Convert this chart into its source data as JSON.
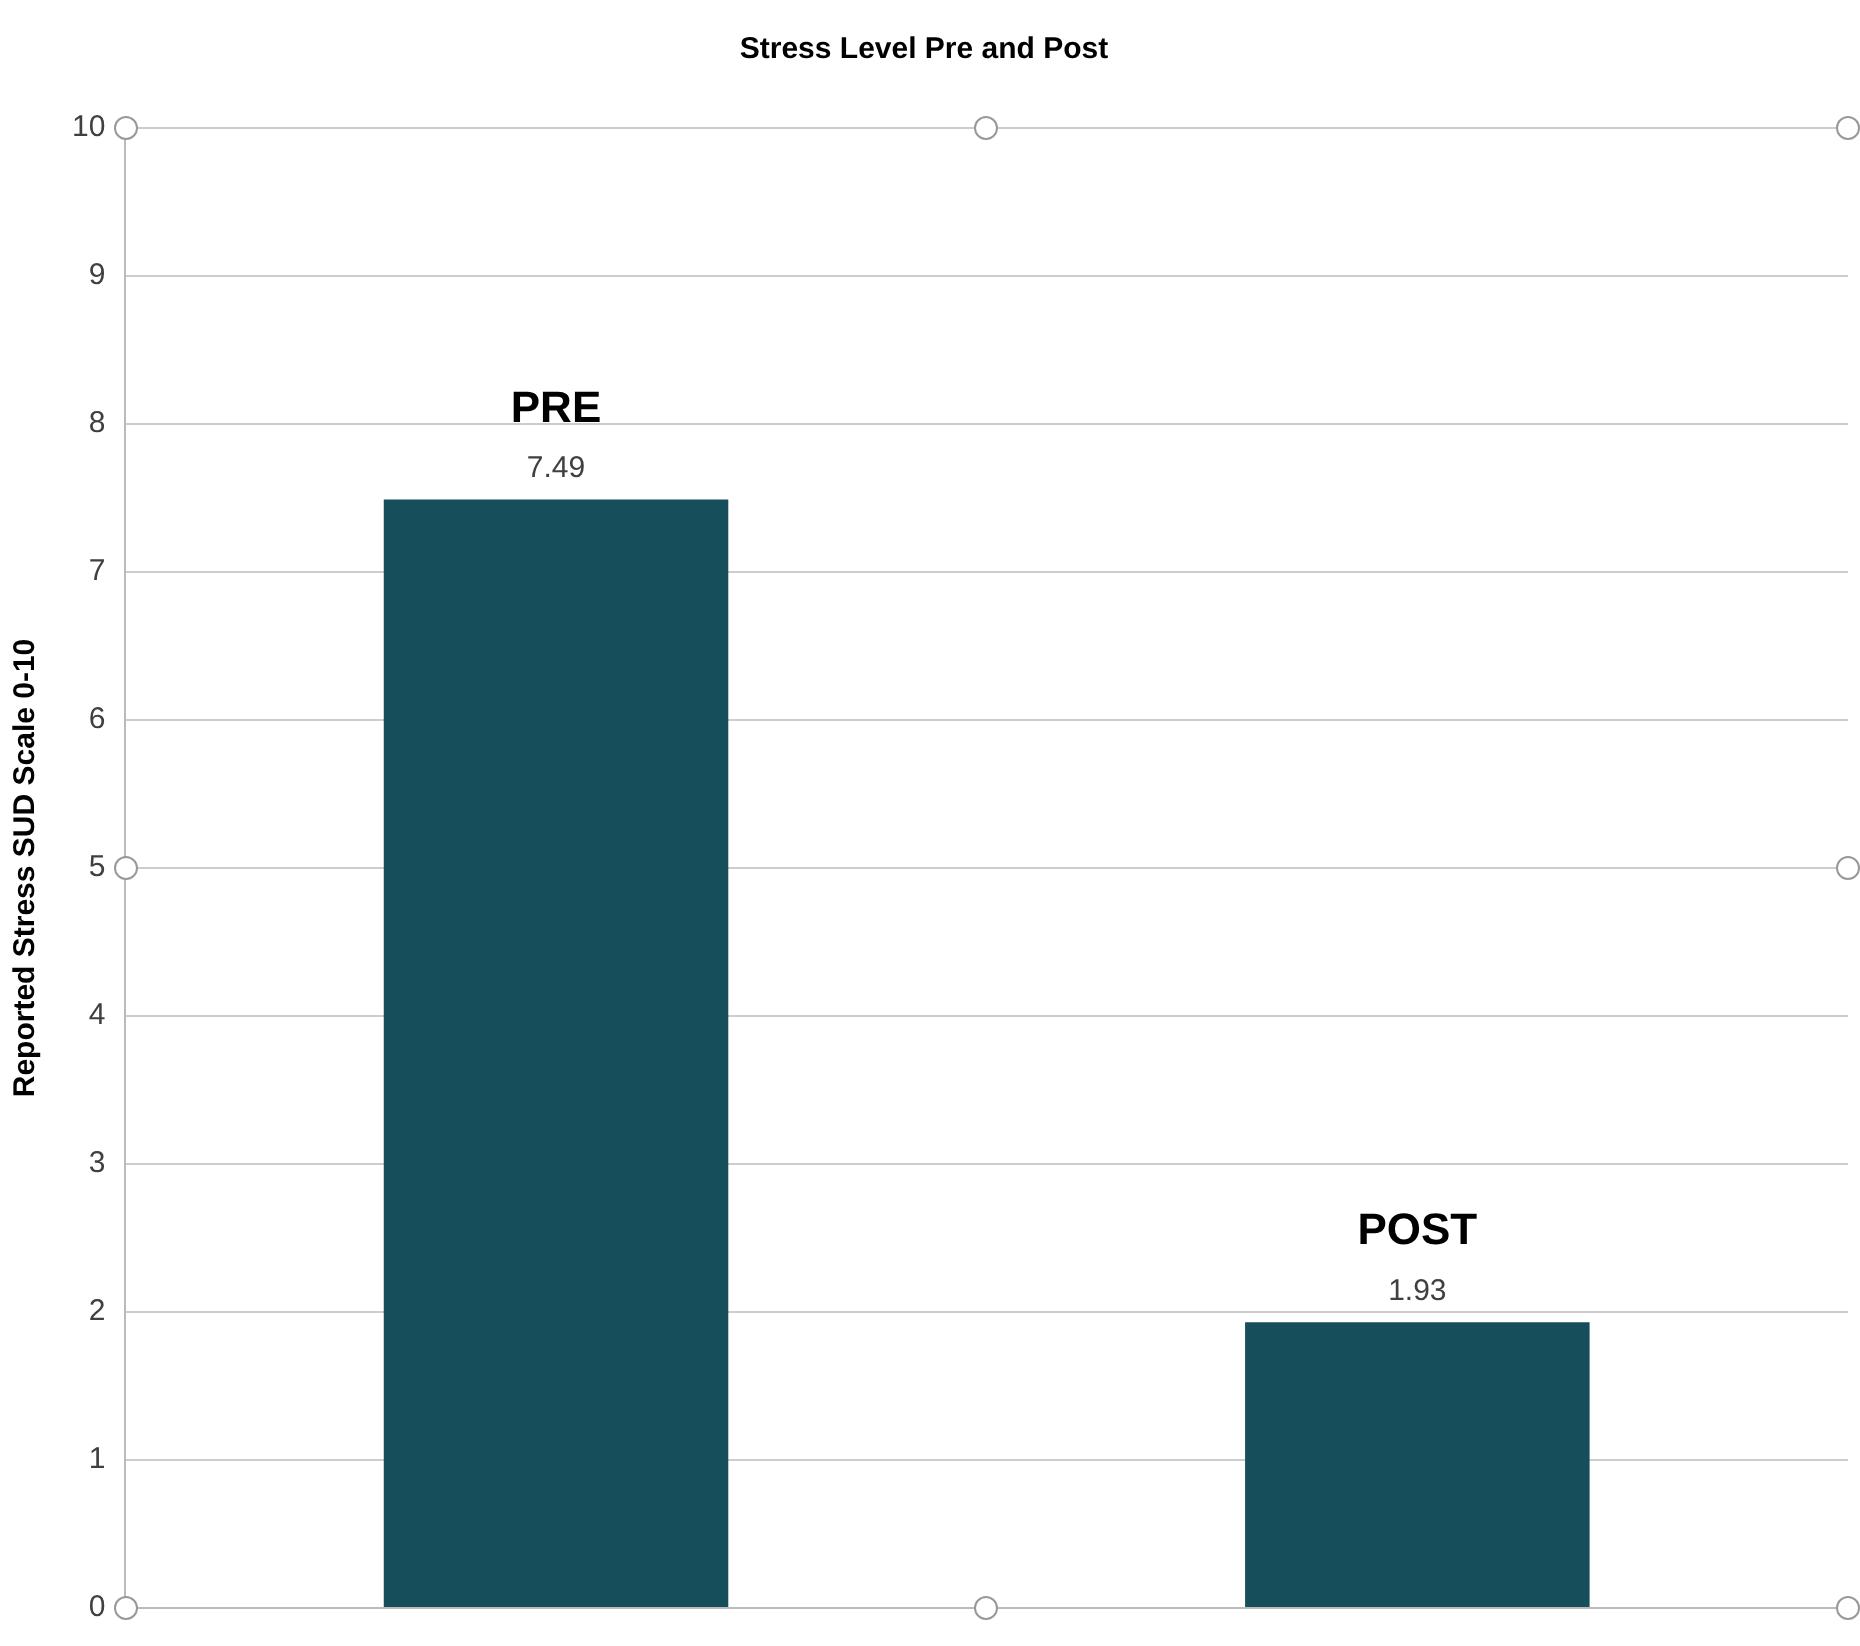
{
  "chart_data": {
    "type": "bar",
    "title": "Stress Level Pre and Post",
    "ylabel": "Reported Stress SUD Scale 0-10",
    "categories": [
      "PRE",
      "POST"
    ],
    "values": [
      7.49,
      1.93
    ],
    "color": "#174e5b",
    "ylim": [
      0,
      10
    ],
    "yticks": [
      0,
      1,
      2,
      3,
      4,
      5,
      6,
      7,
      8,
      9,
      10
    ],
    "grid": "y",
    "data_labels": true,
    "legend": false
  }
}
